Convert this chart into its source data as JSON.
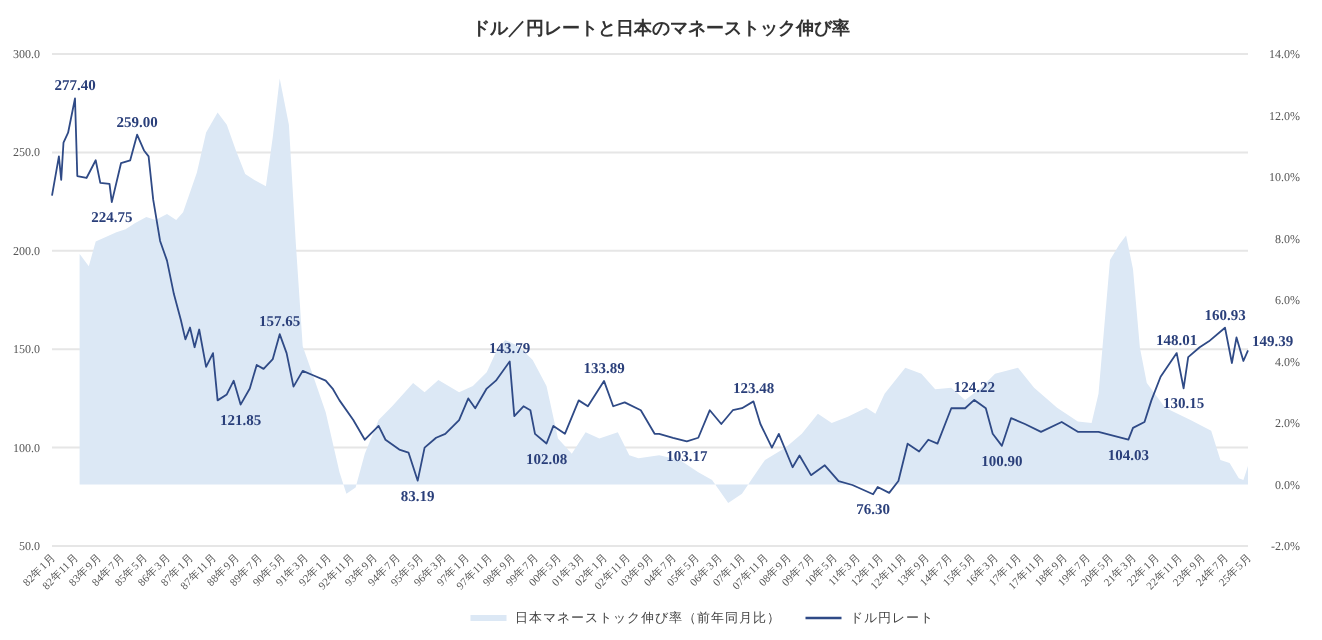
{
  "chart_data": {
    "type": "line",
    "title": "ドル／円レートと日本のマネーストック伸び率",
    "legend": "bottom",
    "grid": "y",
    "xlim": [
      "1982-01",
      "2025-05"
    ],
    "xticks": [
      {
        "value": "1982-01",
        "label": "82年1月"
      },
      {
        "value": "1982-11",
        "label": "82年11月"
      },
      {
        "value": "1983-09",
        "label": "83年9月"
      },
      {
        "value": "1984-07",
        "label": "84年7月"
      },
      {
        "value": "1985-05",
        "label": "85年5月"
      },
      {
        "value": "1986-03",
        "label": "86年3月"
      },
      {
        "value": "1987-01",
        "label": "87年1月"
      },
      {
        "value": "1987-11",
        "label": "87年11月"
      },
      {
        "value": "1988-09",
        "label": "88年9月"
      },
      {
        "value": "1989-07",
        "label": "89年7月"
      },
      {
        "value": "1990-05",
        "label": "90年5月"
      },
      {
        "value": "1991-03",
        "label": "91年3月"
      },
      {
        "value": "1992-01",
        "label": "92年1月"
      },
      {
        "value": "1992-11",
        "label": "92年11月"
      },
      {
        "value": "1993-09",
        "label": "93年9月"
      },
      {
        "value": "1994-07",
        "label": "94年7月"
      },
      {
        "value": "1995-05",
        "label": "95年5月"
      },
      {
        "value": "1996-03",
        "label": "96年3月"
      },
      {
        "value": "1997-01",
        "label": "97年1月"
      },
      {
        "value": "1997-11",
        "label": "97年11月"
      },
      {
        "value": "1998-09",
        "label": "98年9月"
      },
      {
        "value": "1999-07",
        "label": "99年7月"
      },
      {
        "value": "2000-05",
        "label": "00年5月"
      },
      {
        "value": "2001-03",
        "label": "01年3月"
      },
      {
        "value": "2002-01",
        "label": "02年1月"
      },
      {
        "value": "2002-11",
        "label": "02年11月"
      },
      {
        "value": "2003-09",
        "label": "03年9月"
      },
      {
        "value": "2004-07",
        "label": "04年7月"
      },
      {
        "value": "2005-05",
        "label": "05年5月"
      },
      {
        "value": "2006-03",
        "label": "06年3月"
      },
      {
        "value": "2007-01",
        "label": "07年1月"
      },
      {
        "value": "2007-11",
        "label": "07年11月"
      },
      {
        "value": "2008-09",
        "label": "08年9月"
      },
      {
        "value": "2009-07",
        "label": "09年7月"
      },
      {
        "value": "2010-05",
        "label": "10年5月"
      },
      {
        "value": "2011-03",
        "label": "11年3月"
      },
      {
        "value": "2012-01",
        "label": "12年1月"
      },
      {
        "value": "2012-11",
        "label": "12年11月"
      },
      {
        "value": "2013-09",
        "label": "13年9月"
      },
      {
        "value": "2014-07",
        "label": "14年7月"
      },
      {
        "value": "2015-05",
        "label": "15年5月"
      },
      {
        "value": "2016-03",
        "label": "16年3月"
      },
      {
        "value": "2017-01",
        "label": "17年1月"
      },
      {
        "value": "2017-11",
        "label": "17年11月"
      },
      {
        "value": "2018-09",
        "label": "18年9月"
      },
      {
        "value": "2019-07",
        "label": "19年7月"
      },
      {
        "value": "2020-05",
        "label": "20年5月"
      },
      {
        "value": "2021-03",
        "label": "21年3月"
      },
      {
        "value": "2022-01",
        "label": "22年1月"
      },
      {
        "value": "2022-11",
        "label": "22年11月"
      },
      {
        "value": "2023-09",
        "label": "23年9月"
      },
      {
        "value": "2024-07",
        "label": "24年7月"
      },
      {
        "value": "2025-05",
        "label": "25年5月"
      }
    ],
    "ylim": [
      50,
      300
    ],
    "yticks": [
      {
        "value": 50,
        "label": "50.0"
      },
      {
        "value": 100,
        "label": "100.0"
      },
      {
        "value": 150,
        "label": "150.0"
      },
      {
        "value": 200,
        "label": "200.0"
      },
      {
        "value": 250,
        "label": "250.0"
      },
      {
        "value": 300,
        "label": "300.0"
      }
    ],
    "y2lim": [
      -2,
      14
    ],
    "y2ticks": [
      {
        "value": -2,
        "label": "-2.0%"
      },
      {
        "value": 0,
        "label": "0.0%"
      },
      {
        "value": 2,
        "label": "2.0%"
      },
      {
        "value": 4,
        "label": "4.0%"
      },
      {
        "value": 6,
        "label": "6.0%"
      },
      {
        "value": 8,
        "label": "8.0%"
      },
      {
        "value": 10,
        "label": "10.0%"
      },
      {
        "value": 12,
        "label": "12.0%"
      },
      {
        "value": 14,
        "label": "14.0%"
      }
    ],
    "series": [
      {
        "name": "日本マネーストック伸び率（前年同月比）",
        "type": "area",
        "axis": "y2",
        "color": "#dce8f5",
        "x": [
          "1983-01",
          "1983-05",
          "1983-08",
          "1984-05",
          "1984-09",
          "1985-01",
          "1985-06",
          "1985-10",
          "1986-03",
          "1986-07",
          "1986-10",
          "1987-04",
          "1987-08",
          "1988-01",
          "1988-05",
          "1988-09",
          "1989-01",
          "1989-05",
          "1989-10",
          "1990-01",
          "1990-04",
          "1990-08",
          "1990-11",
          "1991-02",
          "1991-06",
          "1991-12",
          "1992-06",
          "1992-09",
          "1993-01",
          "1993-05",
          "1993-11",
          "1994-05",
          "1995-02",
          "1995-07",
          "1996-01",
          "1996-10",
          "1997-04",
          "1997-10",
          "1998-02",
          "1998-06",
          "1998-12",
          "1999-06",
          "1999-12",
          "2000-05",
          "2000-11",
          "2001-05",
          "2001-11",
          "2002-07",
          "2002-12",
          "2003-04",
          "2004-01",
          "2004-10",
          "2005-06",
          "2005-12",
          "2006-07",
          "2007-01",
          "2007-05",
          "2007-11",
          "2008-08",
          "2009-03",
          "2009-10",
          "2010-04",
          "2010-11",
          "2011-07",
          "2011-11",
          "2012-03",
          "2012-12",
          "2013-07",
          "2014-01",
          "2014-08",
          "2015-02",
          "2015-09",
          "2016-03",
          "2017-01",
          "2017-08",
          "2018-06",
          "2019-03",
          "2019-09",
          "2019-12",
          "2020-05",
          "2020-09",
          "2020-12",
          "2021-03",
          "2021-06",
          "2021-09",
          "2022-05",
          "2023-04",
          "2024-01",
          "2024-05",
          "2024-09",
          "2025-01",
          "2025-03",
          "2025-05"
        ],
        "values": [
          7.5,
          7.1,
          7.9,
          8.2,
          8.3,
          8.5,
          8.7,
          8.6,
          8.8,
          8.6,
          8.85,
          10.15,
          11.45,
          12.1,
          11.7,
          10.85,
          10.1,
          9.9,
          9.7,
          11.3,
          13.2,
          11.7,
          7.85,
          4.5,
          3.65,
          2.35,
          0.4,
          -0.3,
          -0.1,
          1.0,
          2.1,
          2.55,
          3.3,
          3.0,
          3.4,
          3.0,
          3.2,
          3.65,
          4.3,
          4.7,
          4.5,
          4.05,
          3.2,
          1.5,
          1.0,
          1.7,
          1.5,
          1.7,
          0.95,
          0.85,
          0.95,
          0.8,
          0.4,
          0.15,
          -0.6,
          -0.3,
          0.15,
          0.8,
          1.2,
          1.65,
          2.3,
          2.0,
          2.2,
          2.5,
          2.3,
          2.95,
          3.8,
          3.6,
          3.1,
          3.15,
          2.75,
          3.15,
          3.6,
          3.8,
          3.15,
          2.5,
          2.05,
          2.0,
          2.95,
          7.3,
          7.8,
          8.1,
          7.0,
          4.45,
          3.3,
          2.5,
          2.1,
          1.75,
          0.8,
          0.7,
          0.2,
          0.15,
          0.6
        ]
      },
      {
        "name": "ドル円レート",
        "type": "line",
        "color": "#2f4a86",
        "x": [
          "1982-01",
          "1982-04",
          "1982-05",
          "1982-06",
          "1982-08",
          "1982-11",
          "1982-12",
          "1983-04",
          "1983-08",
          "1983-10",
          "1984-02",
          "1984-03",
          "1984-07",
          "1984-11",
          "1985-02",
          "1985-05",
          "1985-07",
          "1985-09",
          "1985-12",
          "1986-03",
          "1986-06",
          "1986-09",
          "1986-11",
          "1987-01",
          "1987-03",
          "1987-05",
          "1987-08",
          "1987-11",
          "1988-01",
          "1988-05",
          "1988-08",
          "1988-11",
          "1989-03",
          "1989-06",
          "1989-09",
          "1990-01",
          "1990-04",
          "1990-07",
          "1990-10",
          "1991-02",
          "1991-06",
          "1991-12",
          "1992-03",
          "1992-06",
          "1992-12",
          "1993-05",
          "1993-11",
          "1994-02",
          "1994-08",
          "1994-12",
          "1995-04",
          "1995-07",
          "1995-12",
          "1996-04",
          "1996-10",
          "1997-02",
          "1997-05",
          "1997-10",
          "1998-02",
          "1998-08",
          "1998-10",
          "1999-02",
          "1999-05",
          "1999-07",
          "1999-12",
          "2000-03",
          "2000-08",
          "2001-02",
          "2001-06",
          "2002-01",
          "2002-05",
          "2002-10",
          "2003-05",
          "2003-11",
          "2004-01",
          "2004-07",
          "2005-01",
          "2005-06",
          "2005-11",
          "2006-04",
          "2006-09",
          "2007-01",
          "2007-06",
          "2007-09",
          "2008-02",
          "2008-05",
          "2008-11",
          "2009-02",
          "2009-07",
          "2010-01",
          "2010-07",
          "2011-01",
          "2011-10",
          "2011-12",
          "2012-05",
          "2012-09",
          "2013-01",
          "2013-06",
          "2013-10",
          "2014-02",
          "2014-08",
          "2015-02",
          "2015-06",
          "2015-11",
          "2016-02",
          "2016-06",
          "2016-10",
          "2017-04",
          "2017-11",
          "2018-08",
          "2019-03",
          "2019-12",
          "2021-01",
          "2021-03",
          "2021-08",
          "2021-11",
          "2022-03",
          "2022-10",
          "2023-01",
          "2023-03",
          "2023-08",
          "2023-12",
          "2024-07",
          "2024-10",
          "2024-12",
          "2025-03",
          "2025-05"
        ],
        "values": [
          228,
          248,
          236,
          255,
          260,
          277.4,
          238,
          237,
          246,
          234.5,
          234,
          224.75,
          244.5,
          246,
          259.0,
          251,
          248,
          226,
          205,
          195,
          178,
          165,
          155,
          161,
          151,
          160,
          141,
          148,
          124,
          127,
          134,
          121.85,
          130,
          142,
          140,
          145,
          157.65,
          148,
          131,
          139,
          137,
          134,
          130,
          124,
          114,
          104,
          111,
          104,
          99,
          97.5,
          83.19,
          100,
          105,
          107,
          114,
          125,
          120,
          130,
          134,
          143.79,
          116,
          121,
          119,
          107,
          102.08,
          111,
          107,
          124,
          121,
          133.89,
          121,
          123,
          119,
          107,
          107,
          105,
          103.17,
          105,
          119,
          112,
          119,
          120,
          123.48,
          112,
          100,
          107,
          90,
          96,
          86,
          91,
          83,
          81,
          76.3,
          80,
          77,
          83,
          102,
          98,
          104,
          102,
          120,
          120,
          124.22,
          120,
          107,
          100.9,
          115,
          112,
          108,
          113,
          108,
          108,
          104.03,
          110,
          113,
          124,
          136,
          148.01,
          130.15,
          146,
          151,
          154,
          160.93,
          143,
          156,
          144,
          149.39
        ]
      }
    ],
    "annotations": [
      {
        "text": "277.40",
        "x": "1982-11",
        "y": 277.4
      },
      {
        "text": "224.75",
        "x": "1984-03",
        "y": 224.75
      },
      {
        "text": "259.00",
        "x": "1985-02",
        "y": 259.0
      },
      {
        "text": "121.85",
        "x": "1988-11",
        "y": 121.85
      },
      {
        "text": "157.65",
        "x": "1990-04",
        "y": 157.65
      },
      {
        "text": "83.19",
        "x": "1995-04",
        "y": 83.19
      },
      {
        "text": "143.79",
        "x": "1998-08",
        "y": 143.79
      },
      {
        "text": "102.08",
        "x": "1999-12",
        "y": 102.08
      },
      {
        "text": "133.89",
        "x": "2002-01",
        "y": 133.89
      },
      {
        "text": "103.17",
        "x": "2005-01",
        "y": 103.17
      },
      {
        "text": "123.48",
        "x": "2007-06",
        "y": 123.48
      },
      {
        "text": "76.30",
        "x": "2011-10",
        "y": 76.3
      },
      {
        "text": "124.22",
        "x": "2015-06",
        "y": 124.22
      },
      {
        "text": "100.90",
        "x": "2016-06",
        "y": 100.9
      },
      {
        "text": "104.03",
        "x": "2021-01",
        "y": 104.03
      },
      {
        "text": "148.01",
        "x": "2022-10",
        "y": 148.01
      },
      {
        "text": "130.15",
        "x": "2023-01",
        "y": 130.15
      },
      {
        "text": "160.93",
        "x": "2024-07",
        "y": 160.93
      },
      {
        "text": "149.39",
        "x": "2025-05",
        "y": 149.39
      }
    ]
  }
}
